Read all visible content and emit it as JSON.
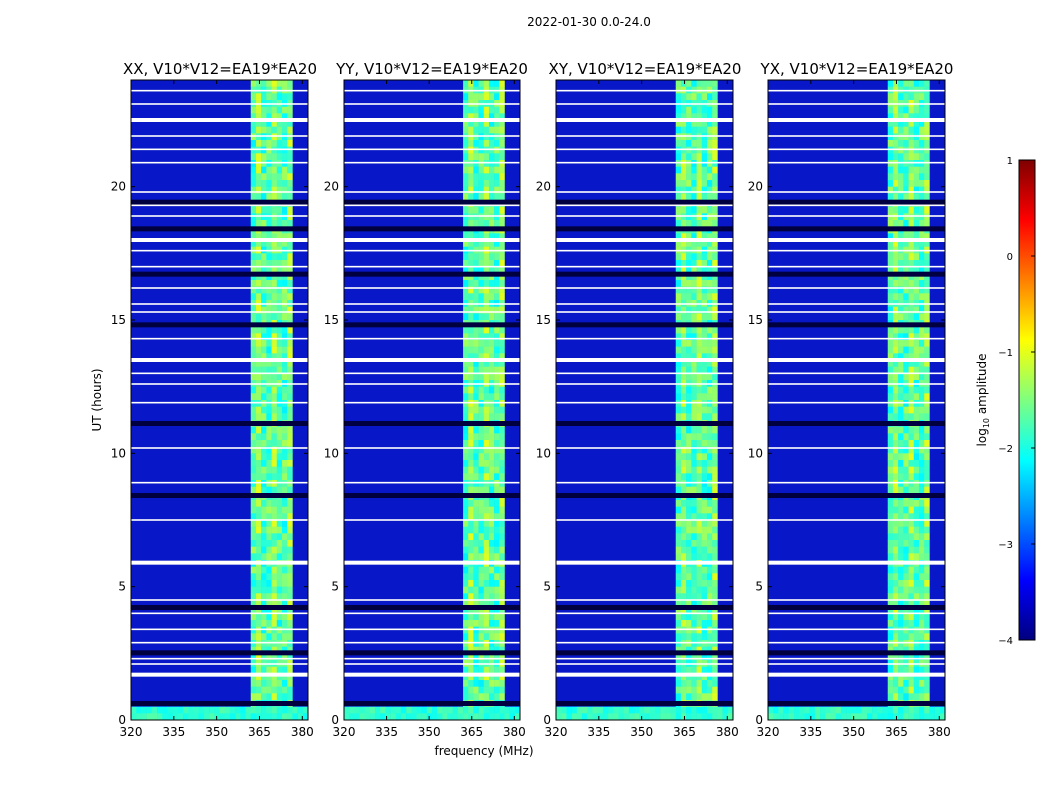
{
  "suptitle": "2022-01-30 0.0-24.0",
  "colormap_colors": [
    "#00007f",
    "#0000ff",
    "#007fff",
    "#00ffff",
    "#7fff7f",
    "#ffff00",
    "#ff7f00",
    "#ff0000",
    "#7f0000"
  ],
  "chart_data": [
    {
      "type": "heatmap",
      "title": "XX, V10*V12=EA19*EA20",
      "xlabel": "",
      "ylabel": "UT (hours)",
      "xlim": [
        320,
        382
      ],
      "ylim": [
        0,
        24
      ],
      "xticks": [
        320,
        335,
        350,
        365,
        380
      ],
      "yticks": [
        0,
        5,
        10,
        15,
        20
      ],
      "rfi_band_mhz": [
        362,
        377
      ],
      "lowband_hours": [
        0.1,
        0.5
      ],
      "white_gap_hours": [
        1.7,
        2.1,
        2.3,
        2.9,
        3.4,
        4.0,
        4.5,
        5.9,
        7.5,
        8.9,
        10.2,
        11.9,
        12.6,
        13.0,
        13.5,
        14.3,
        15.3,
        15.6,
        16.2,
        17.0,
        17.6,
        18.0,
        18.9,
        19.3,
        19.8,
        20.9,
        21.4,
        21.9,
        22.5,
        23.1,
        23.6
      ],
      "dark_band_hours": [
        0.6,
        2.5,
        4.2,
        8.4,
        11.1,
        14.8,
        16.7,
        18.4,
        19.4
      ],
      "colorbar_label": "log10 amplitude",
      "colorbar_range": [
        -4,
        1
      ]
    },
    {
      "type": "heatmap",
      "title": "YY, V10*V12=EA19*EA20",
      "xlabel": "frequency (MHz)",
      "ylabel": "",
      "xlim": [
        320,
        382
      ],
      "ylim": [
        0,
        24
      ],
      "xticks": [
        320,
        335,
        350,
        365,
        380
      ],
      "yticks": [
        0,
        5,
        10,
        15,
        20
      ],
      "rfi_band_mhz": [
        362,
        377
      ],
      "lowband_hours": [
        0.1,
        0.5
      ],
      "white_gap_hours": [
        1.7,
        2.1,
        2.3,
        2.9,
        3.4,
        4.0,
        4.5,
        5.9,
        7.5,
        8.9,
        10.2,
        11.9,
        12.6,
        13.0,
        13.5,
        14.3,
        15.3,
        15.6,
        16.2,
        17.0,
        17.6,
        18.0,
        18.9,
        19.3,
        19.8,
        20.9,
        21.4,
        21.9,
        22.5,
        23.1,
        23.6
      ],
      "dark_band_hours": [
        0.6,
        2.5,
        4.2,
        8.4,
        11.1,
        14.8,
        16.7,
        18.4,
        19.4
      ],
      "colorbar_label": "log10 amplitude",
      "colorbar_range": [
        -4,
        1
      ]
    },
    {
      "type": "heatmap",
      "title": "XY, V10*V12=EA19*EA20",
      "xlabel": "",
      "ylabel": "",
      "xlim": [
        320,
        382
      ],
      "ylim": [
        0,
        24
      ],
      "xticks": [
        320,
        335,
        350,
        365,
        380
      ],
      "yticks": [
        0,
        5,
        10,
        15,
        20
      ],
      "rfi_band_mhz": [
        362,
        377
      ],
      "lowband_hours": [
        0.1,
        0.5
      ],
      "white_gap_hours": [
        1.7,
        2.1,
        2.3,
        2.9,
        3.4,
        4.0,
        4.5,
        5.9,
        7.5,
        8.9,
        10.2,
        11.9,
        12.6,
        13.0,
        13.5,
        14.3,
        15.3,
        15.6,
        16.2,
        17.0,
        17.6,
        18.0,
        18.9,
        19.3,
        19.8,
        20.9,
        21.4,
        21.9,
        22.5,
        23.1,
        23.6
      ],
      "dark_band_hours": [
        0.6,
        2.5,
        4.2,
        8.4,
        11.1,
        14.8,
        16.7,
        18.4,
        19.4
      ],
      "colorbar_label": "log10 amplitude",
      "colorbar_range": [
        -4,
        1
      ]
    },
    {
      "type": "heatmap",
      "title": "YX, V10*V12=EA19*EA20",
      "xlabel": "",
      "ylabel": "",
      "xlim": [
        320,
        382
      ],
      "ylim": [
        0,
        24
      ],
      "xticks": [
        320,
        335,
        350,
        365,
        380
      ],
      "yticks": [
        0,
        5,
        10,
        15,
        20
      ],
      "rfi_band_mhz": [
        362,
        377
      ],
      "lowband_hours": [
        0.1,
        0.5
      ],
      "white_gap_hours": [
        1.7,
        2.1,
        2.3,
        2.9,
        3.4,
        4.0,
        4.5,
        5.9,
        7.5,
        8.9,
        10.2,
        11.9,
        12.6,
        13.0,
        13.5,
        14.3,
        15.3,
        15.6,
        16.2,
        17.0,
        17.6,
        18.0,
        18.9,
        19.3,
        19.8,
        20.9,
        21.4,
        21.9,
        22.5,
        23.1,
        23.6
      ],
      "dark_band_hours": [
        0.6,
        2.5,
        4.2,
        8.4,
        11.1,
        14.8,
        16.7,
        18.4,
        19.4
      ],
      "colorbar_label": "log10 amplitude",
      "colorbar_range": [
        -4,
        1
      ]
    }
  ],
  "colorbar": {
    "label_prefix": "log",
    "label_sub": "10",
    "label_suffix": " amplitude",
    "ticks": [
      "1",
      "0",
      "−1",
      "−2",
      "−3",
      "−4"
    ]
  }
}
